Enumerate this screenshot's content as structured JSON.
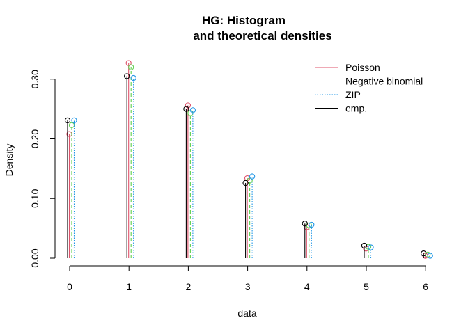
{
  "chart_data": {
    "type": "bar",
    "title_lines": [
      "HG: Histogram",
      "and theoretical densities"
    ],
    "xlabel": "data",
    "ylabel": "Density",
    "x": [
      0,
      1,
      2,
      3,
      4,
      5,
      6
    ],
    "x_ticks": [
      "0",
      "1",
      "2",
      "3",
      "4",
      "5",
      "6"
    ],
    "y_ticks": [
      "0.00",
      "0.10",
      "0.20",
      "0.30"
    ],
    "ylim": [
      0,
      0.33
    ],
    "grid": false,
    "legend_placement": "top-right",
    "series": [
      {
        "name": "Poisson",
        "color": "#DF536B",
        "line": "solid",
        "values": [
          0.208,
          0.327,
          0.256,
          0.134,
          0.052,
          0.016,
          0.004
        ]
      },
      {
        "name": "Negative binomial",
        "color": "#61D04F",
        "line": "dashed",
        "values": [
          0.223,
          0.32,
          0.243,
          0.13,
          0.055,
          0.019,
          0.006
        ]
      },
      {
        "name": "ZIP",
        "color": "#2297E6",
        "line": "dotted",
        "values": [
          0.231,
          0.302,
          0.248,
          0.137,
          0.056,
          0.018,
          0.004
        ]
      },
      {
        "name": "emp.",
        "color": "#000000",
        "line": "solid",
        "values": [
          0.231,
          0.305,
          0.25,
          0.126,
          0.058,
          0.021,
          0.008
        ]
      }
    ]
  }
}
